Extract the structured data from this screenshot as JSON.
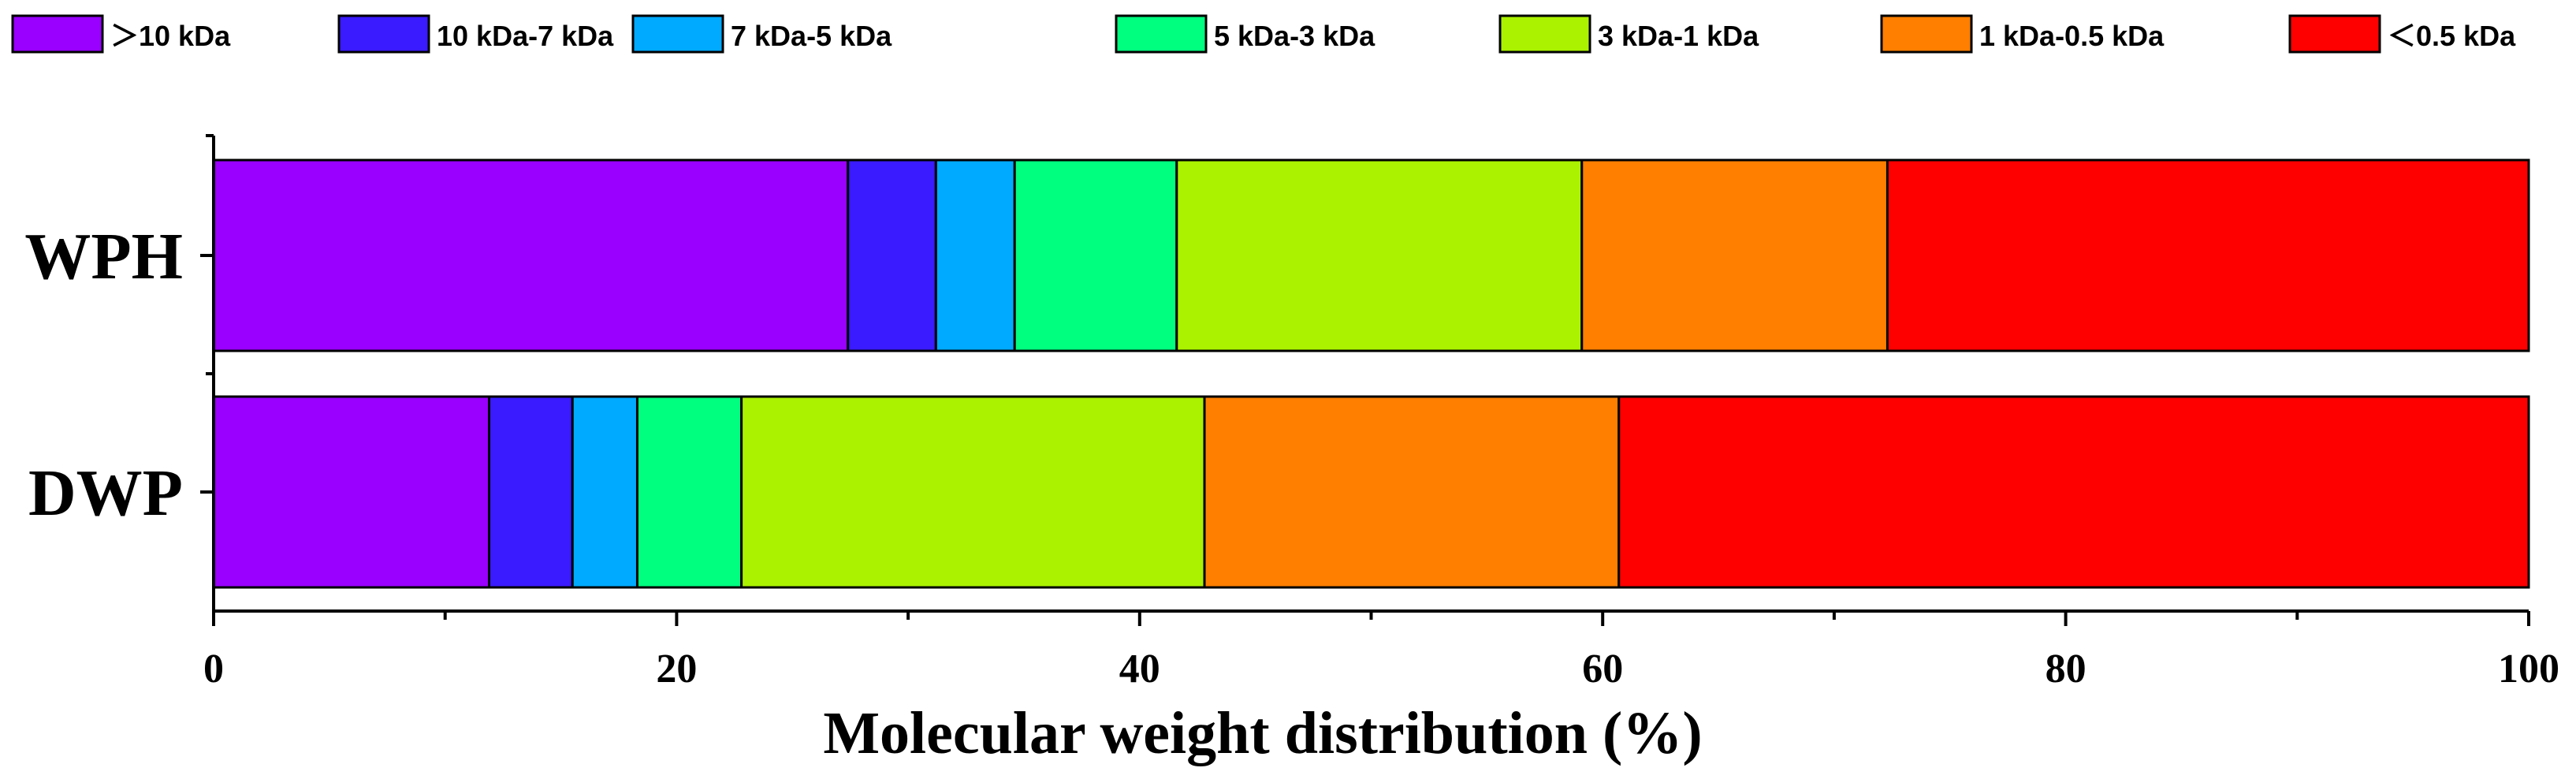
{
  "chart_data": {
    "type": "bar",
    "orientation": "horizontal",
    "stacked": true,
    "title": "",
    "xlabel": "Molecular weight distribution (%)",
    "ylabel": "",
    "xlim": [
      0,
      100
    ],
    "x_ticks": [
      0,
      20,
      40,
      60,
      80,
      100
    ],
    "x_tick_labels": [
      "0",
      "20",
      "40",
      "60",
      "80",
      "100"
    ],
    "categories": [
      "WPH",
      "DWP"
    ],
    "legend_position": "top",
    "series": [
      {
        "name": ">10 kDa",
        "label": "＞10 kDa",
        "color": "#9900FF",
        "values": [
          27.4,
          11.9
        ]
      },
      {
        "name": "10 kDa-7 kDa",
        "label": "10 kDa-7 kDa",
        "color": "#3A1AFF",
        "values": [
          3.8,
          3.6
        ]
      },
      {
        "name": "7 kDa-5 kDa",
        "label": "7 kDa-5 kDa",
        "color": "#00AAFF",
        "values": [
          3.4,
          2.8
        ]
      },
      {
        "name": "5 kDa-3 kDa",
        "label": "5 kDa-3 kDa",
        "color": "#00FF7F",
        "values": [
          7.0,
          4.5
        ]
      },
      {
        "name": "3 kDa-1 kDa",
        "label": "3 kDa-1 kDa",
        "color": "#AAF200",
        "values": [
          17.5,
          20.0
        ]
      },
      {
        "name": "1 kDa-0.5 kDa",
        "label": "1 kDa-0.5 kDa",
        "color": "#FF7F00",
        "values": [
          13.2,
          17.9
        ]
      },
      {
        "name": "<0.5 kDa",
        "label": "＜0.5 kDa",
        "color": "#FF0000",
        "values": [
          27.7,
          39.3
        ]
      }
    ]
  }
}
